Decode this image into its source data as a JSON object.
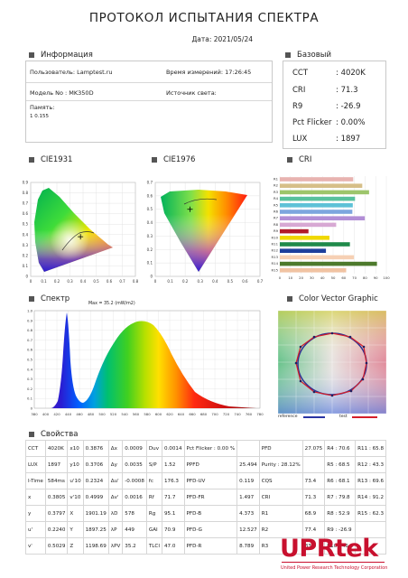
{
  "header": {
    "title": "ПРОТОКОЛ ИСПЫТАНИЯ СПЕКТРА",
    "date": "Дата: 2021/05/24"
  },
  "info": {
    "title": "Информация",
    "user": "Пользователь: Lamptest.ru",
    "measure_time": "Время измерений: 17:26:45",
    "model": "Модель No : MK350D",
    "source": "Источник света:",
    "note_label": "Память:",
    "note_value": "1 0.155"
  },
  "basic": {
    "title": "Базовый",
    "rows": [
      {
        "k": "CCT",
        "v": ": 4020K"
      },
      {
        "k": "CRI",
        "v": ": 71.3"
      },
      {
        "k": "R9",
        "v": ": -26.9"
      },
      {
        "k": "Pct Flicker",
        "v": ": 0.00%"
      },
      {
        "k": "LUX",
        "v": ": 1897"
      }
    ]
  },
  "cie1931": {
    "title": "CIE1931",
    "x_ticks": [
      "0",
      "0.1",
      "0.2",
      "0.3",
      "0.4",
      "0.5",
      "0.6",
      "0.7",
      "0.8"
    ],
    "y_ticks": [
      "0",
      "0.1",
      "0.2",
      "0.3",
      "0.4",
      "0.5",
      "0.6",
      "0.7",
      "0.8",
      "0.9"
    ],
    "point": {
      "x": 0.3805,
      "y": 0.3797
    }
  },
  "cie1976": {
    "title": "CIE1976",
    "x_ticks": [
      "0",
      "0.1",
      "0.2",
      "0.3",
      "0.4",
      "0.5",
      "0.6",
      "0.7"
    ],
    "y_ticks": [
      "0",
      "0.1",
      "0.2",
      "0.3",
      "0.4",
      "0.5",
      "0.6",
      "0.7"
    ],
    "point": {
      "u": 0.2324,
      "v": 0.4999
    }
  },
  "cri_chart": {
    "title": "CRI",
    "x_ticks": [
      "0",
      "10",
      "20",
      "30",
      "40",
      "50",
      "60",
      "70",
      "80",
      "90",
      "100"
    ],
    "labels": [
      "R1",
      "R2",
      "R3",
      "R4",
      "R5",
      "R6",
      "R7",
      "R8",
      "R9",
      "R10",
      "R11",
      "R12",
      "R13",
      "R14",
      "R15"
    ],
    "values": [
      68.9,
      77.4,
      83.8,
      70.6,
      68.5,
      68.1,
      79.8,
      52.9,
      -26.9,
      46.6,
      65.8,
      43.3,
      69.6,
      91.2,
      62.3
    ],
    "colors": [
      "#e8b3b0",
      "#d6bf88",
      "#9dc56b",
      "#58c19d",
      "#5ec1d7",
      "#7da6de",
      "#b28ed6",
      "#d7a8d3",
      "#b21a2a",
      "#f0d800",
      "#1f8a4a",
      "#1d3f9c",
      "#f6d0b4",
      "#4d7a2c",
      "#f1c3a3"
    ]
  },
  "spectrum": {
    "title": "Спектр",
    "max_label": "Max = 35.2 (mW/m2)",
    "x_ticks": [
      "380",
      "400",
      "420",
      "440",
      "460",
      "480",
      "500",
      "520",
      "540",
      "560",
      "580",
      "600",
      "620",
      "640",
      "660",
      "680",
      "700",
      "720",
      "740",
      "760",
      "780"
    ],
    "y_ticks": [
      "0",
      "0.1",
      "0.2",
      "0.3",
      "0.4",
      "0.5",
      "0.6",
      "0.7",
      "0.8",
      "0.9",
      "1.0"
    ]
  },
  "cvg": {
    "title": "Color Vector Graphic",
    "legend_ref": "reference",
    "legend_test": "test"
  },
  "props": {
    "title": "Свойства",
    "rows": [
      [
        "CCT",
        "4020K",
        "x10",
        "0.3876",
        "Δx",
        "0.0009",
        "Duv",
        "0.0014",
        "Pct Flicker : 0.00 %",
        "",
        "PFD",
        "27.075",
        "R4 : 70.6",
        "R11 : 65.8"
      ],
      [
        "LUX",
        "1897",
        "y10",
        "0.3706",
        "Δy",
        "0.0035",
        "S/P",
        "1.52",
        "PPFD",
        "25.494",
        "Purity : 28.12%",
        "",
        "R5 : 68.5",
        "R12 : 43.3"
      ],
      [
        "I-Time",
        "584ms",
        "u'10",
        "0.2324",
        "Δu'",
        "-0.0008",
        "fc",
        "176.3",
        "PFD-UV",
        "0.119",
        "CQS",
        "73.4",
        "R6 : 68.1",
        "R13 : 69.6"
      ],
      [
        "x",
        "0.3805",
        "v'10",
        "0.4999",
        "Δv'",
        "0.0016",
        "Rf",
        "71.7",
        "PFD-FR",
        "1.497",
        "CRI",
        "71.3",
        "R7 : 79.8",
        "R14 : 91.2"
      ],
      [
        "y",
        "0.3797",
        "X",
        "1901.19",
        "λD",
        "578",
        "Rg",
        "95.1",
        "PFD-B",
        "4.373",
        "R1",
        "68.9",
        "R8 : 52.9",
        "R15 : 62.3"
      ],
      [
        "u'",
        "0.2240",
        "Y",
        "1897.25",
        "λP",
        "449",
        "GAI",
        "70.9",
        "PFD-G",
        "12.527",
        "R2",
        "77.4",
        "R9 : -26.9",
        ""
      ],
      [
        "v'",
        "0.5029",
        "Z",
        "1198.69",
        "λPV",
        "35.2",
        "TLCI",
        "47.0",
        "PFD-R",
        "8.789",
        "R3",
        "83.8",
        "R10 : 46.6",
        ""
      ]
    ]
  },
  "logo": {
    "text": "UPRtek",
    "sub": "United Power Research Technology Corporation"
  }
}
